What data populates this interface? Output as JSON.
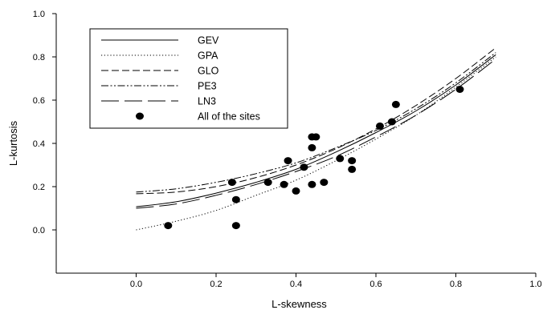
{
  "chart_data": {
    "type": "scatter",
    "title": "",
    "xlabel": "L-skewness",
    "ylabel": "L-kurtosis",
    "xlim": [
      -0.2,
      1.0
    ],
    "ylim": [
      -0.2,
      1.0
    ],
    "x_ticks": [
      "0.0",
      "0.2",
      "0.4",
      "0.6",
      "0.8",
      "1.0"
    ],
    "y_ticks": [
      "0.0",
      "0.2",
      "0.4",
      "0.6",
      "0.8",
      "1.0"
    ],
    "grid": false,
    "legend_position": "top-left",
    "series": [
      {
        "name": "GEV",
        "kind": "line",
        "style": "solid",
        "x": [
          0.0,
          0.1,
          0.2,
          0.3,
          0.4,
          0.5,
          0.6,
          0.7,
          0.8,
          0.9
        ],
        "y": [
          0.107,
          0.13,
          0.17,
          0.22,
          0.28,
          0.36,
          0.45,
          0.55,
          0.67,
          0.81
        ]
      },
      {
        "name": "GPA",
        "kind": "line",
        "style": "dotted",
        "x": [
          0.0,
          0.1,
          0.2,
          0.3,
          0.4,
          0.5,
          0.6,
          0.7,
          0.8,
          0.9
        ],
        "y": [
          0.0,
          0.04,
          0.09,
          0.16,
          0.23,
          0.32,
          0.42,
          0.53,
          0.66,
          0.8
        ]
      },
      {
        "name": "GLO",
        "kind": "line",
        "style": "dashed",
        "x": [
          0.0,
          0.1,
          0.2,
          0.3,
          0.4,
          0.5,
          0.6,
          0.7,
          0.8,
          0.9
        ],
        "y": [
          0.167,
          0.175,
          0.2,
          0.242,
          0.3,
          0.375,
          0.467,
          0.575,
          0.7,
          0.842
        ]
      },
      {
        "name": "PE3",
        "kind": "line",
        "style": "dash-dot-dot",
        "x": [
          0.0,
          0.1,
          0.2,
          0.3,
          0.4,
          0.5,
          0.6,
          0.7,
          0.8,
          0.9
        ],
        "y": [
          0.175,
          0.19,
          0.22,
          0.26,
          0.31,
          0.38,
          0.46,
          0.56,
          0.68,
          0.82
        ]
      },
      {
        "name": "LN3",
        "kind": "line",
        "style": "long-dash",
        "x": [
          0.0,
          0.1,
          0.2,
          0.3,
          0.4,
          0.5,
          0.6,
          0.7,
          0.8,
          0.9
        ],
        "y": [
          0.1,
          0.12,
          0.16,
          0.21,
          0.27,
          0.34,
          0.43,
          0.53,
          0.65,
          0.79
        ]
      },
      {
        "name": "All of the sites",
        "kind": "points",
        "x": [
          0.08,
          0.24,
          0.25,
          0.25,
          0.33,
          0.37,
          0.38,
          0.4,
          0.42,
          0.44,
          0.44,
          0.44,
          0.45,
          0.47,
          0.51,
          0.54,
          0.54,
          0.61,
          0.64,
          0.65,
          0.81
        ],
        "y": [
          0.02,
          0.22,
          0.14,
          0.02,
          0.22,
          0.21,
          0.32,
          0.18,
          0.29,
          0.21,
          0.38,
          0.43,
          0.43,
          0.22,
          0.33,
          0.32,
          0.28,
          0.48,
          0.5,
          0.58,
          0.65
        ]
      }
    ]
  }
}
